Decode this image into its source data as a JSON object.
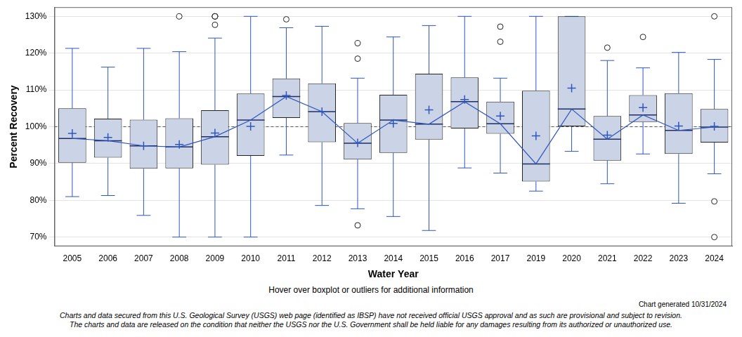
{
  "chart_data": {
    "type": "boxplot",
    "y_label": "Percent Recovery",
    "x_label": "Water Year",
    "annotations": [
      "Hover over boxplot or outliers for additional information",
      "Chart generated 10/31/2024"
    ],
    "disclaimer": [
      "Charts and data secured from this U.S. Geological Survey (USGS) web page (identified as IBSP) have not received official USGS approval and as such are provisional and subject to revision.",
      "The charts and data are released on the condition that neither the USGS nor the U.S. Government shall be held liable for any damages resulting from its authorized or unauthorized use."
    ],
    "categories": [
      "2005",
      "2006",
      "2007",
      "2008",
      "2009",
      "2010",
      "2011",
      "2012",
      "2013",
      "2014",
      "2015",
      "2016",
      "2017",
      "2019",
      "2020",
      "2021",
      "2022",
      "2023",
      "2024"
    ],
    "whisker_low": [
      81.0,
      81.3,
      75.9,
      70.0,
      70.0,
      70.0,
      92.3,
      78.6,
      77.7,
      75.6,
      71.8,
      88.8,
      87.4,
      82.5,
      93.3,
      84.5,
      92.6,
      79.2,
      87.2
    ],
    "q1": [
      90.2,
      91.6,
      88.6,
      88.7,
      89.7,
      92.1,
      102.4,
      95.8,
      91.1,
      92.9,
      96.5,
      99.5,
      98.1,
      85.1,
      100.1,
      90.8,
      101.3,
      92.6,
      95.7
    ],
    "median": [
      96.8,
      96.2,
      94.8,
      94.5,
      97.3,
      101.8,
      108.2,
      104.1,
      95.5,
      101.8,
      100.7,
      106.8,
      100.8,
      89.9,
      104.8,
      96.6,
      103.2,
      99.0,
      99.9
    ],
    "q3": [
      105.0,
      102.2,
      101.9,
      102.3,
      104.5,
      109.0,
      113.1,
      111.8,
      101.0,
      108.7,
      114.4,
      113.4,
      106.8,
      109.8,
      130.0,
      102.9,
      108.6,
      109.1,
      104.8
    ],
    "whisker_high": [
      121.3,
      116.2,
      121.3,
      120.4,
      124.1,
      130.0,
      126.9,
      127.3,
      113.2,
      124.4,
      127.5,
      130.0,
      113.2,
      130.0,
      130.0,
      118.0,
      116.0,
      120.2,
      118.3
    ],
    "mean": [
      98.2,
      97.1,
      94.8,
      95.2,
      98.3,
      100.1,
      108.5,
      104.1,
      95.6,
      100.9,
      104.6,
      107.4,
      102.9,
      97.5,
      110.5,
      97.7,
      105.2,
      100.2,
      100.1
    ],
    "outliers": [
      [],
      [],
      [],
      [
        130.0
      ],
      [
        127.7,
        130.0,
        130.0,
        130.0,
        130.0,
        130.0
      ],
      [],
      [
        129.2
      ],
      [],
      [
        122.7,
        118.5,
        73.2
      ],
      [],
      [],
      [],
      [
        127.2,
        123.1
      ],
      [],
      [],
      [
        121.5
      ],
      [
        124.4
      ],
      [],
      [
        130.0,
        79.7,
        70.0
      ]
    ],
    "reference_line": 100,
    "color": "#cad4e6",
    "ylim": [
      67.5,
      132.5
    ],
    "yticks": [
      {
        "value": 70,
        "label": "70%"
      },
      {
        "value": 80,
        "label": "80%"
      },
      {
        "value": 90,
        "label": "90%"
      },
      {
        "value": 100,
        "label": "100%"
      },
      {
        "value": 110,
        "label": "110%"
      },
      {
        "value": 120,
        "label": "120%"
      },
      {
        "value": 130,
        "label": "130%"
      }
    ],
    "grid": true
  }
}
